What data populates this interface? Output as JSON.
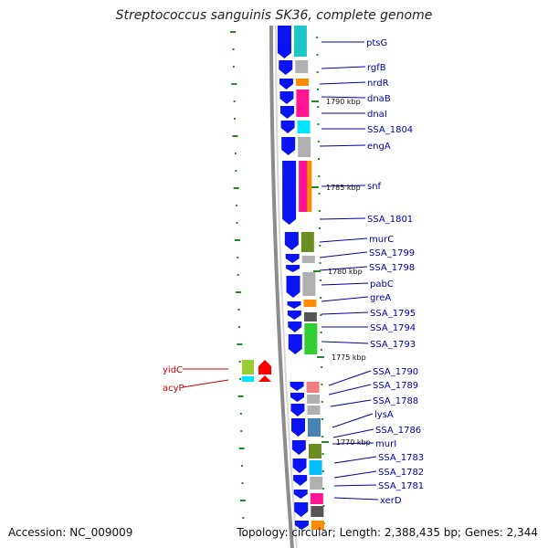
{
  "title": "Streptococcus sanguinis SK36, complete genome",
  "accession_text": "Accession: NC_009009",
  "topology_text": "Topology: circular; Length: 2,388,435 bp; Genes: 2,344",
  "colors": {
    "forward_gene": "#0a14f0",
    "reverse_gene": "#ff0000",
    "label_blue": "#0000aa",
    "label_red": "#cc0000",
    "gc_tick": "#228b22",
    "backbone": "#909090"
  },
  "kbp_labels": [
    "1790 kbp",
    "1785 kbp",
    "1780 kbp",
    "1775 kbp",
    "1770 kbp"
  ],
  "forward_gene_labels": [
    "ptsG",
    "rgfB",
    "nrdR",
    "dnaB",
    "dnaI",
    "SSA_1804",
    "engA",
    "snf",
    "SSA_1801",
    "murC",
    "SSA_1799",
    "SSA_1798",
    "pabC",
    "greA",
    "SSA_1795",
    "SSA_1794",
    "SSA_1793",
    "SSA_1790",
    "SSA_1789",
    "SSA_1788",
    "lysA",
    "SSA_1786",
    "murI",
    "SSA_1783",
    "SSA_1782",
    "SSA_1781",
    "xerD"
  ],
  "reverse_gene_labels": [
    "yidC",
    "acyP"
  ]
}
